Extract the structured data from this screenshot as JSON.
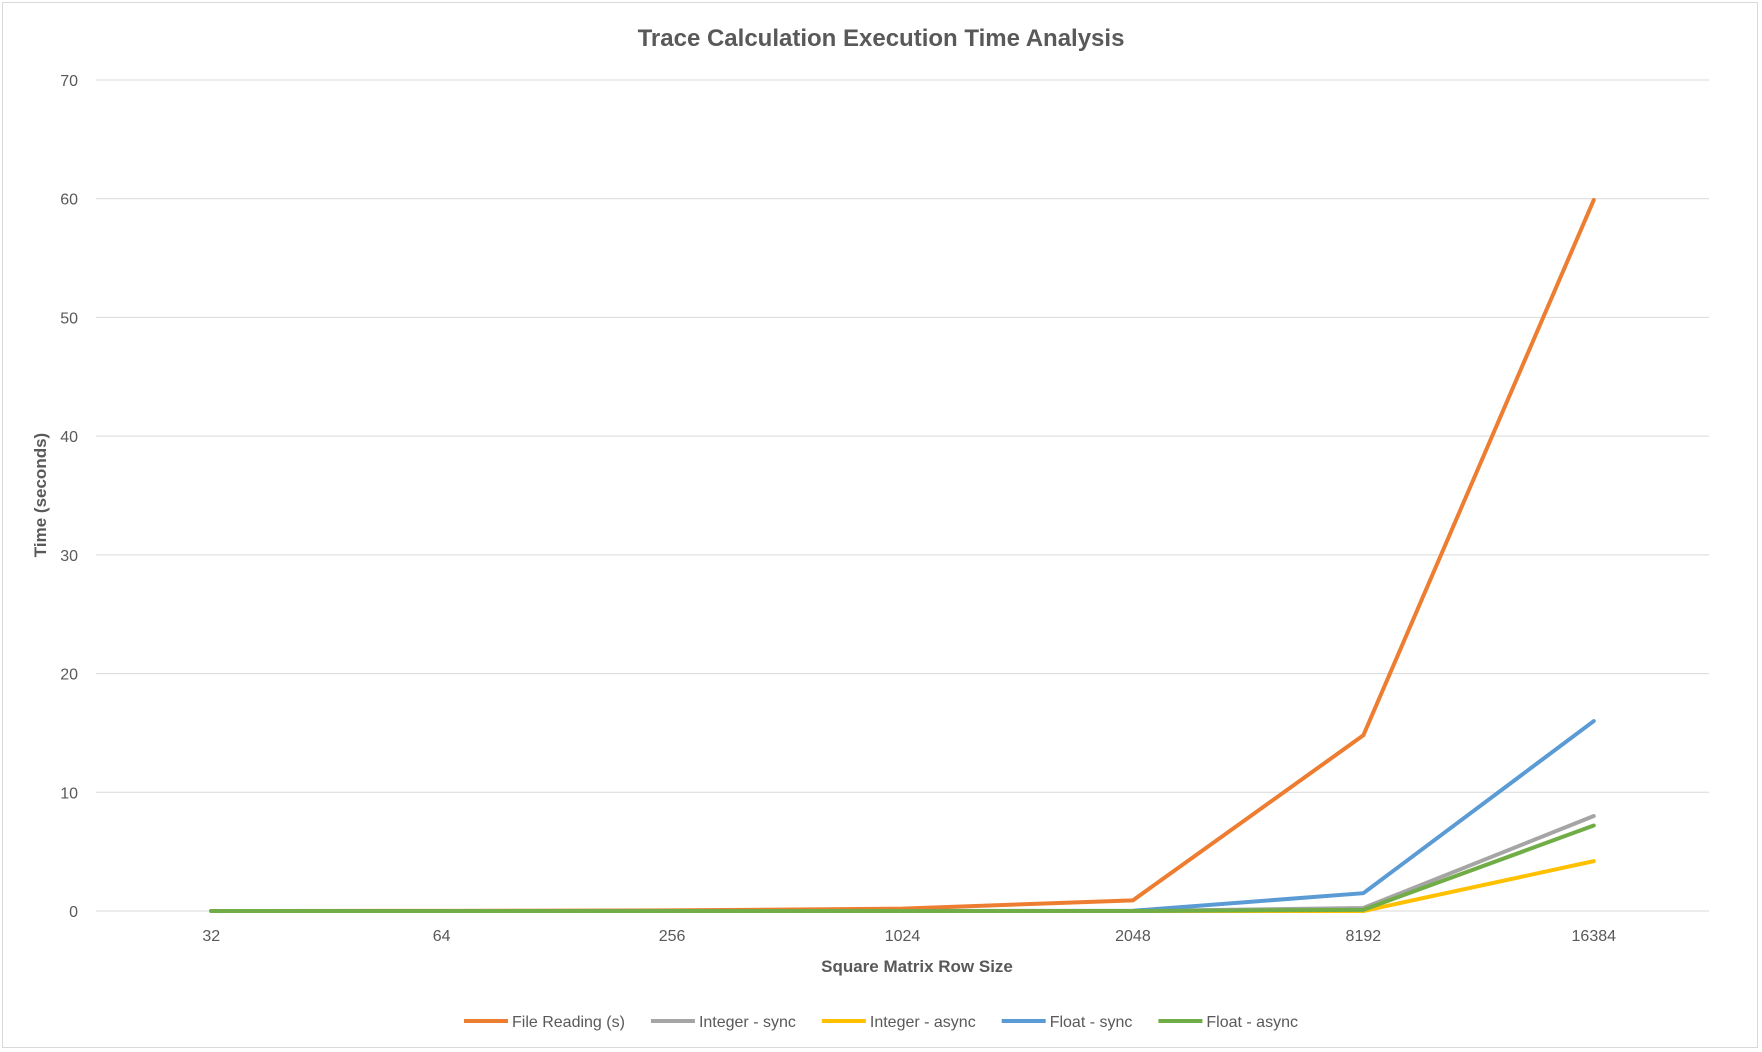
{
  "chart_data": {
    "type": "line",
    "title": "Trace Calculation Execution Time Analysis",
    "xlabel": "Square Matrix Row Size",
    "ylabel": "Time (seconds)",
    "categories": [
      "32",
      "64",
      "256",
      "1024",
      "2048",
      "8192",
      "16384"
    ],
    "ylim": [
      0,
      70
    ],
    "yticks": [
      0,
      10,
      20,
      30,
      40,
      50,
      60,
      70
    ],
    "grid": true,
    "legend_position": "bottom",
    "series": [
      {
        "name": "File Reading (s)",
        "color": "#ED7D31",
        "values": [
          0,
          0.01,
          0.05,
          0.2,
          0.9,
          14.8,
          59.9
        ]
      },
      {
        "name": "Integer - sync",
        "color": "#A5A5A5",
        "values": [
          0,
          0,
          0,
          0,
          0,
          0.25,
          8.0
        ]
      },
      {
        "name": "Integer - async",
        "color": "#FFC000",
        "values": [
          0,
          0,
          0,
          0,
          0,
          0,
          4.2
        ]
      },
      {
        "name": "Float - sync",
        "color": "#5B9BD5",
        "values": [
          0,
          0,
          0,
          0,
          0.02,
          1.5,
          16.0
        ]
      },
      {
        "name": "Float - async",
        "color": "#70AD47",
        "values": [
          0,
          0,
          0,
          0,
          0,
          0.1,
          7.2
        ]
      }
    ]
  }
}
